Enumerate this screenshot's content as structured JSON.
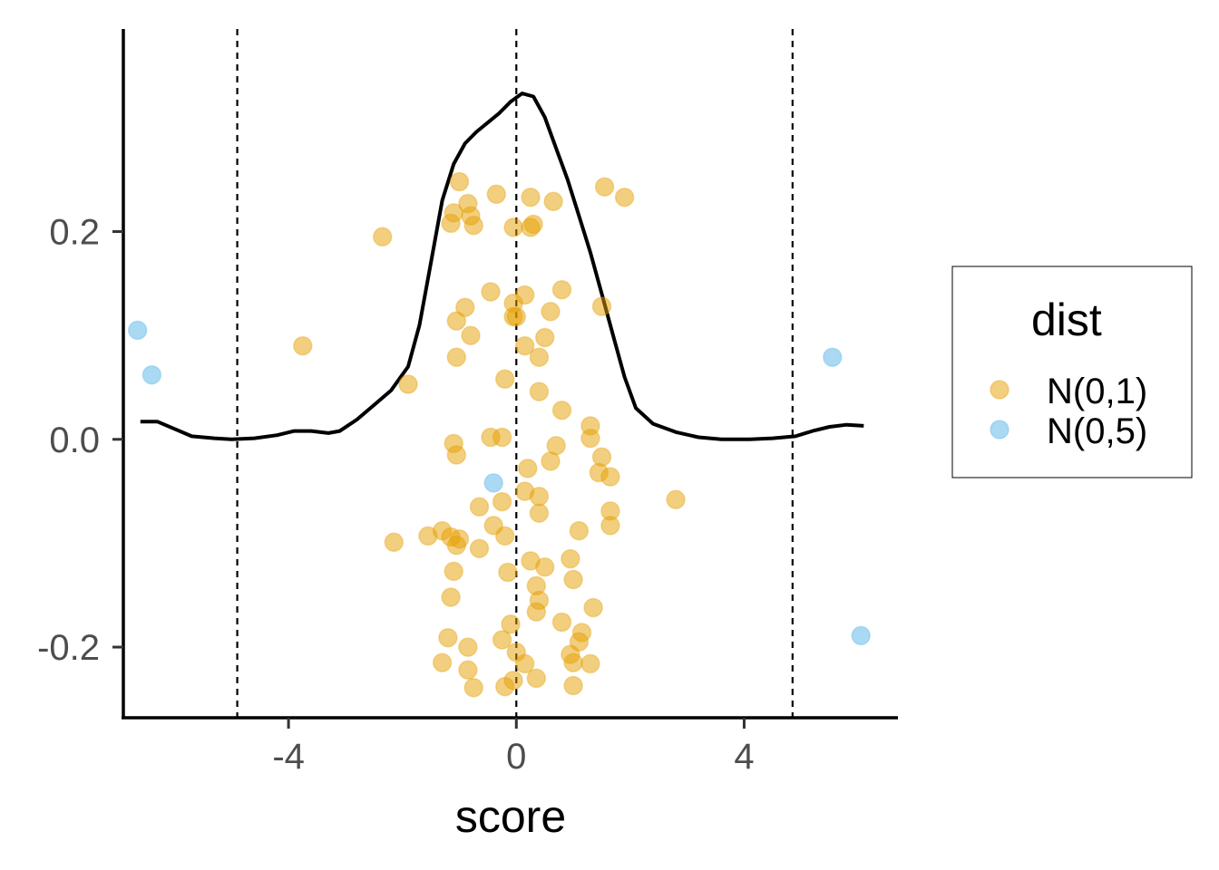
{
  "chart_data": {
    "type": "scatter",
    "xlabel": "score",
    "ylabel": "",
    "xlim": [
      -6.9,
      6.7
    ],
    "ylim": [
      -0.268,
      0.395
    ],
    "x_ticks": [
      -4,
      0,
      4
    ],
    "x_tick_labels": [
      "-4",
      "0",
      "4"
    ],
    "y_ticks": [
      0.2,
      0.0,
      -0.2
    ],
    "y_tick_labels": [
      "0.2",
      "0.0",
      "-0.2"
    ],
    "vlines": [
      -4.9,
      0,
      4.85
    ],
    "grid": false,
    "legend": {
      "title": "dist",
      "position": "right",
      "items": [
        {
          "label": "N(0,1)",
          "color": "#E69F00"
        },
        {
          "label": "N(0,5)",
          "color": "#56B4E9"
        }
      ]
    },
    "series": [
      {
        "name": "N(0,1)",
        "color": "#E69F00",
        "points": [
          [
            -1.0,
            0.248
          ],
          [
            -0.35,
            0.236
          ],
          [
            0.25,
            0.233
          ],
          [
            0.65,
            0.229
          ],
          [
            1.55,
            0.243
          ],
          [
            1.9,
            0.233
          ],
          [
            -0.85,
            0.227
          ],
          [
            -1.1,
            0.218
          ],
          [
            -0.8,
            0.215
          ],
          [
            -1.15,
            0.208
          ],
          [
            -0.75,
            0.206
          ],
          [
            -0.05,
            0.204
          ],
          [
            0.3,
            0.207
          ],
          [
            0.25,
            0.204
          ],
          [
            -2.35,
            0.195
          ],
          [
            -0.45,
            0.142
          ],
          [
            0.15,
            0.139
          ],
          [
            0.8,
            0.144
          ],
          [
            -0.05,
            0.131
          ],
          [
            1.5,
            0.128
          ],
          [
            -0.9,
            0.127
          ],
          [
            -1.05,
            0.114
          ],
          [
            0.6,
            0.123
          ],
          [
            -0.05,
            0.118
          ],
          [
            0.0,
            0.118
          ],
          [
            -0.8,
            0.1
          ],
          [
            0.5,
            0.098
          ],
          [
            0.15,
            0.09
          ],
          [
            -3.75,
            0.09
          ],
          [
            -1.05,
            0.079
          ],
          [
            0.4,
            0.079
          ],
          [
            -1.9,
            0.053
          ],
          [
            -0.2,
            0.058
          ],
          [
            0.4,
            0.046
          ],
          [
            0.8,
            0.028
          ],
          [
            1.3,
            0.013
          ],
          [
            1.3,
            0.001
          ],
          [
            -0.45,
            0.002
          ],
          [
            -0.25,
            0.002
          ],
          [
            -1.1,
            -0.004
          ],
          [
            0.7,
            -0.006
          ],
          [
            -1.05,
            -0.015
          ],
          [
            1.5,
            -0.017
          ],
          [
            0.6,
            -0.021
          ],
          [
            0.2,
            -0.028
          ],
          [
            1.45,
            -0.032
          ],
          [
            1.65,
            -0.036
          ],
          [
            0.15,
            -0.05
          ],
          [
            0.4,
            -0.055
          ],
          [
            2.8,
            -0.058
          ],
          [
            -0.25,
            -0.06
          ],
          [
            -0.65,
            -0.065
          ],
          [
            1.65,
            -0.069
          ],
          [
            0.4,
            -0.071
          ],
          [
            -0.4,
            -0.083
          ],
          [
            1.65,
            -0.083
          ],
          [
            1.1,
            -0.088
          ],
          [
            -1.3,
            -0.088
          ],
          [
            -1.55,
            -0.093
          ],
          [
            -0.2,
            -0.093
          ],
          [
            -1.15,
            -0.094
          ],
          [
            -1.0,
            -0.096
          ],
          [
            -1.05,
            -0.102
          ],
          [
            -2.15,
            -0.099
          ],
          [
            -0.65,
            -0.105
          ],
          [
            0.25,
            -0.117
          ],
          [
            0.95,
            -0.115
          ],
          [
            0.5,
            -0.123
          ],
          [
            -1.1,
            -0.127
          ],
          [
            -0.15,
            -0.128
          ],
          [
            1.0,
            -0.135
          ],
          [
            0.35,
            -0.141
          ],
          [
            -1.15,
            -0.152
          ],
          [
            0.4,
            -0.155
          ],
          [
            1.35,
            -0.162
          ],
          [
            0.35,
            -0.166
          ],
          [
            -0.1,
            -0.178
          ],
          [
            0.8,
            -0.176
          ],
          [
            1.15,
            -0.186
          ],
          [
            -1.2,
            -0.191
          ],
          [
            -0.25,
            -0.193
          ],
          [
            1.1,
            -0.195
          ],
          [
            -0.85,
            -0.2
          ],
          [
            0.0,
            -0.205
          ],
          [
            0.95,
            -0.207
          ],
          [
            -1.3,
            -0.215
          ],
          [
            0.15,
            -0.216
          ],
          [
            1.0,
            -0.215
          ],
          [
            1.3,
            -0.216
          ],
          [
            -0.85,
            -0.222
          ],
          [
            0.35,
            -0.23
          ],
          [
            -0.05,
            -0.232
          ],
          [
            -0.75,
            -0.239
          ],
          [
            -0.2,
            -0.238
          ],
          [
            1.0,
            -0.237
          ]
        ]
      },
      {
        "name": "N(0,5)",
        "color": "#56B4E9",
        "points": [
          [
            -6.65,
            0.105
          ],
          [
            -6.4,
            0.062
          ],
          [
            5.55,
            0.079
          ],
          [
            -0.4,
            -0.042
          ],
          [
            6.05,
            -0.189
          ]
        ]
      }
    ],
    "density_curve": [
      [
        -6.6,
        0.017
      ],
      [
        -6.3,
        0.017
      ],
      [
        -6.0,
        0.01
      ],
      [
        -5.7,
        0.003
      ],
      [
        -5.3,
        0.001
      ],
      [
        -5.0,
        0.0
      ],
      [
        -4.6,
        0.001
      ],
      [
        -4.2,
        0.004
      ],
      [
        -3.9,
        0.008
      ],
      [
        -3.6,
        0.008
      ],
      [
        -3.3,
        0.006
      ],
      [
        -3.1,
        0.008
      ],
      [
        -2.8,
        0.019
      ],
      [
        -2.5,
        0.033
      ],
      [
        -2.2,
        0.047
      ],
      [
        -1.9,
        0.07
      ],
      [
        -1.7,
        0.11
      ],
      [
        -1.5,
        0.17
      ],
      [
        -1.3,
        0.23
      ],
      [
        -1.1,
        0.265
      ],
      [
        -0.9,
        0.285
      ],
      [
        -0.7,
        0.296
      ],
      [
        -0.5,
        0.305
      ],
      [
        -0.3,
        0.314
      ],
      [
        -0.1,
        0.325
      ],
      [
        0.1,
        0.333
      ],
      [
        0.3,
        0.33
      ],
      [
        0.5,
        0.31
      ],
      [
        0.7,
        0.28
      ],
      [
        0.9,
        0.25
      ],
      [
        1.1,
        0.215
      ],
      [
        1.3,
        0.18
      ],
      [
        1.5,
        0.14
      ],
      [
        1.7,
        0.1
      ],
      [
        1.9,
        0.06
      ],
      [
        2.1,
        0.03
      ],
      [
        2.4,
        0.015
      ],
      [
        2.8,
        0.007
      ],
      [
        3.2,
        0.002
      ],
      [
        3.6,
        0.0
      ],
      [
        4.1,
        0.0
      ],
      [
        4.5,
        0.001
      ],
      [
        4.9,
        0.003
      ],
      [
        5.2,
        0.008
      ],
      [
        5.5,
        0.012
      ],
      [
        5.8,
        0.014
      ],
      [
        6.1,
        0.013
      ]
    ]
  }
}
